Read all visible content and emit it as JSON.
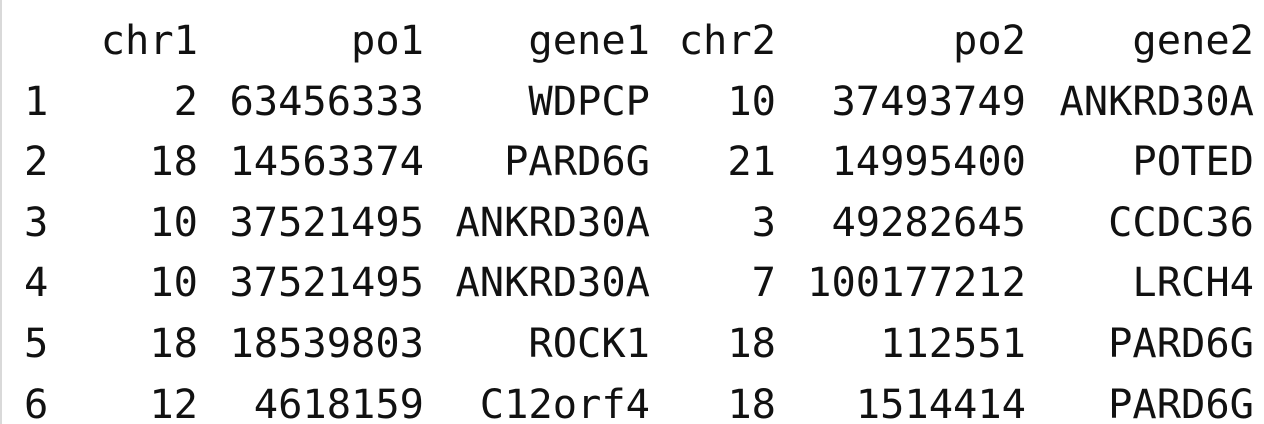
{
  "table": {
    "columns": [
      "chr1",
      "po1",
      "gene1",
      "chr2",
      "po2",
      "gene2"
    ],
    "rows": [
      {
        "index": "1",
        "chr1": "2",
        "po1": "63456333",
        "gene1": "WDPCP",
        "chr2": "10",
        "po2": "37493749",
        "gene2": "ANKRD30A"
      },
      {
        "index": "2",
        "chr1": "18",
        "po1": "14563374",
        "gene1": "PARD6G",
        "chr2": "21",
        "po2": "14995400",
        "gene2": "POTED"
      },
      {
        "index": "3",
        "chr1": "10",
        "po1": "37521495",
        "gene1": "ANKRD30A",
        "chr2": "3",
        "po2": "49282645",
        "gene2": "CCDC36"
      },
      {
        "index": "4",
        "chr1": "10",
        "po1": "37521495",
        "gene1": "ANKRD30A",
        "chr2": "7",
        "po2": "100177212",
        "gene2": "LRCH4"
      },
      {
        "index": "5",
        "chr1": "18",
        "po1": "18539803",
        "gene1": "ROCK1",
        "chr2": "18",
        "po2": "112551",
        "gene2": "PARD6G"
      },
      {
        "index": "6",
        "chr1": "12",
        "po1": "4618159",
        "gene1": "C12orf4",
        "chr2": "18",
        "po2": "1514414",
        "gene2": "PARD6G"
      }
    ]
  }
}
